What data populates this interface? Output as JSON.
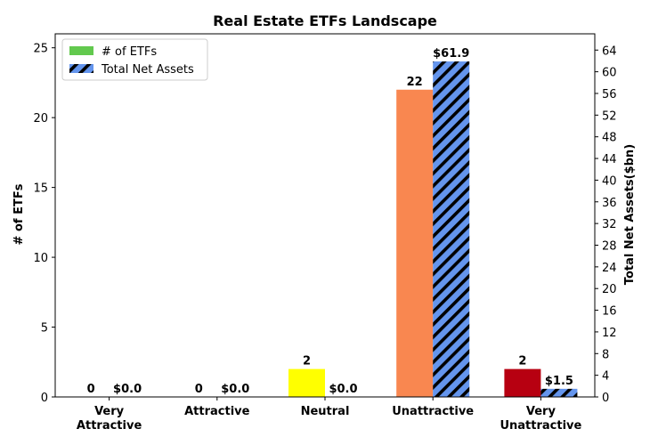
{
  "chart_data": {
    "type": "bar",
    "title": "Real Estate ETFs Landscape",
    "categories": [
      "Very Attractive",
      "Attractive",
      "Neutral",
      "Unattractive",
      "Very Unattractive"
    ],
    "category_lines": [
      [
        "Very",
        "Attractive"
      ],
      [
        "Attractive"
      ],
      [
        "Neutral"
      ],
      [
        "Unattractive"
      ],
      [
        "Very",
        "Unattractive"
      ]
    ],
    "series": [
      {
        "name": "# of ETFs",
        "axis": "left",
        "values": [
          0,
          0,
          2,
          22,
          2
        ],
        "labels": [
          "0",
          "0",
          "2",
          "22",
          "2"
        ],
        "colors": [
          "#62c94e",
          "#3cb371",
          "#ffff00",
          "#f98750",
          "#b70011"
        ],
        "legend_color": "#62c94e"
      },
      {
        "name": "Total Net Assets",
        "axis": "right",
        "values": [
          0.0,
          0.0,
          0.0,
          61.9,
          1.5
        ],
        "labels": [
          "$0.0",
          "$0.0",
          "$0.0",
          "$61.9",
          "$1.5"
        ],
        "color": "#6495ed",
        "hatch": "diagonal"
      }
    ],
    "ylabel_left": "# of ETFs",
    "ylabel_right": "Total Net Assets($bn)",
    "ylim_left": [
      0,
      26
    ],
    "ylim_right": [
      0,
      67
    ],
    "yticks_left": [
      0,
      5,
      10,
      15,
      20,
      25
    ],
    "yticks_right": [
      0,
      4,
      8,
      12,
      16,
      20,
      24,
      28,
      32,
      36,
      40,
      44,
      48,
      52,
      56,
      60,
      64
    ],
    "legend_position": "top-left",
    "grid": false
  }
}
